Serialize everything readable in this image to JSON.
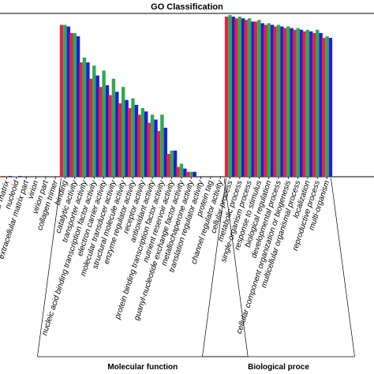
{
  "chart_data": {
    "type": "bar",
    "title": "GO Classification",
    "series_colors": [
      "#e0234b",
      "#2fa84f",
      "#1f1fd6"
    ],
    "categories": [
      "ular matrix",
      "nucleoid",
      "extracellular matrix part",
      "virion",
      "virion part",
      "collagen trimer",
      "binding",
      "catalytic activity",
      "transporter activity",
      "nucleic acid binding transcription factor activity",
      "electron carrier activity",
      "molecular transducer activity",
      "structural molecule activity",
      "enzyme regulator activity",
      "receptor activity",
      "antioxidant activity",
      "protein binding transcription factor activity",
      "nutrient reservoir activity",
      "guanyl-nucleotide exchange factor activity",
      "metallochaperone activity",
      "translation regulator activity",
      "protein tag",
      "channel regulator activity",
      "cellular process",
      "metabolic process",
      "single-organism process",
      "response to stimulus",
      "biological regulation",
      "developmental process",
      "cellular component organization or biogenesis",
      "multicellular organismal process",
      "localization",
      "reproductive process",
      "multi-organism"
    ],
    "series": [
      {
        "values": [
          0.5,
          0.2,
          0,
          0,
          0,
          0,
          93,
          88,
          70,
          60,
          55,
          50,
          45,
          42,
          38,
          33,
          28,
          14,
          6,
          3,
          0,
          0,
          0,
          98,
          97,
          96,
          95,
          93,
          92,
          91,
          90,
          89,
          88,
          85
        ]
      },
      {
        "values": [
          0.4,
          0.2,
          0,
          0,
          0,
          0,
          93,
          88,
          73,
          68,
          65,
          60,
          55,
          48,
          42,
          38,
          38,
          16,
          8,
          3,
          0,
          0,
          0,
          99,
          98,
          97,
          96,
          94,
          93,
          92,
          91,
          90,
          90,
          86
        ]
      },
      {
        "values": [
          0.5,
          0.5,
          0,
          0,
          0,
          0,
          92,
          86,
          70,
          62,
          56,
          52,
          47,
          44,
          40,
          35,
          30,
          16,
          5,
          3,
          0,
          0,
          0,
          98,
          97,
          95,
          94,
          93,
          92,
          91,
          90,
          89,
          88,
          85
        ]
      }
    ],
    "ylim": [
      0,
      100
    ],
    "groups": [
      {
        "label": "Molecular function",
        "start": 6,
        "end": 22
      },
      {
        "label": "Biological proce",
        "start": 23,
        "end": 33
      }
    ],
    "grid": false
  }
}
